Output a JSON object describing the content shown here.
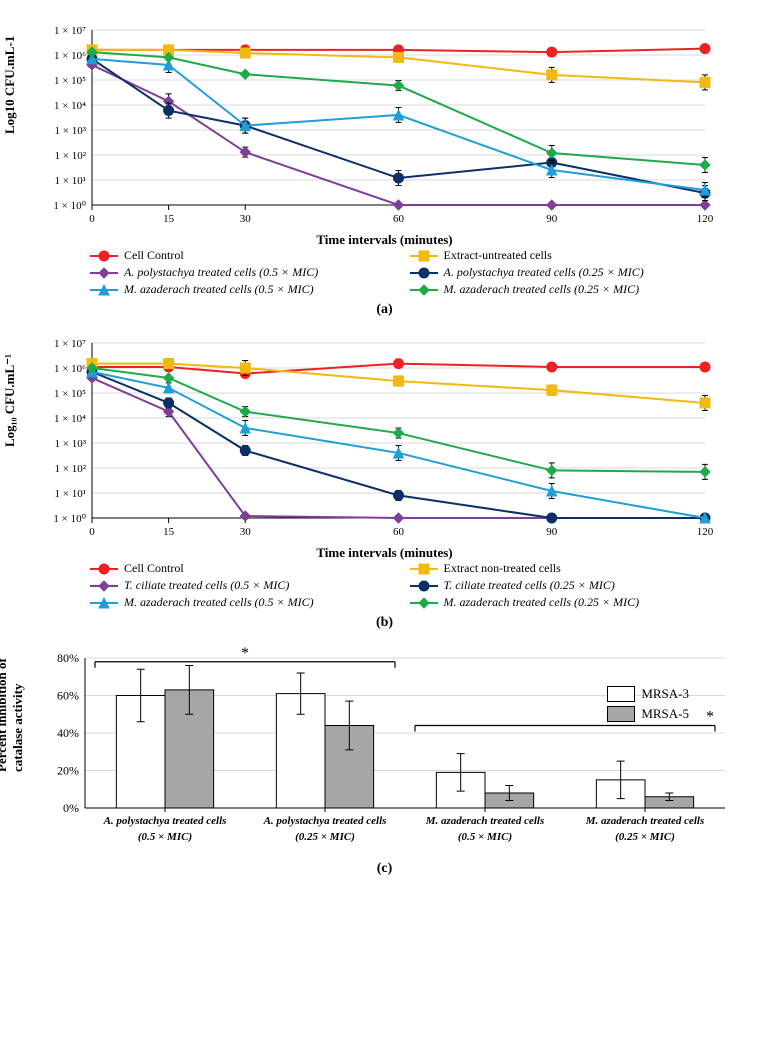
{
  "global": {
    "font": "Palatino Linotype",
    "background_color": "#ffffff"
  },
  "panelA": {
    "label": "(a)",
    "ylabel": "Log10 CFU.mL-1",
    "xlabel": "Time intervals (minutes)",
    "yscale": "log",
    "ylim": [
      1,
      10000000.0
    ],
    "ytick_labels": [
      "1 × 10⁰",
      "1 × 10¹",
      "1 × 10²",
      "1 × 10³",
      "1 × 10⁴",
      "1 × 10⁵",
      "1 × 10⁶",
      "1 × 10⁷"
    ],
    "x_values": [
      0,
      15,
      30,
      60,
      90,
      120
    ],
    "grid_color": "#d9d9d9",
    "tick_fontsize": 11,
    "series": [
      {
        "name": "Cell Control",
        "color": "#ed2024",
        "marker": "circle",
        "values": [
          1600000.0,
          1600000.0,
          1600000.0,
          1600000.0,
          1300000.0,
          1800000.0
        ],
        "err": [
          0,
          0,
          0,
          0,
          0,
          0
        ]
      },
      {
        "name": "Extract-untreated cells",
        "color": "#f2b90f",
        "marker": "square",
        "values": [
          1600000.0,
          1600000.0,
          1200000.0,
          800000.0,
          160000.0,
          80000.0
        ],
        "err": [
          0,
          0,
          0,
          0,
          0.3,
          0.3
        ]
      },
      {
        "name": "A. polystachya treated cells (0.5 × MIC)",
        "color": "#7d3f98",
        "marker": "diamond",
        "italic": true,
        "values": [
          400000.0,
          14000.0,
          130.0,
          1,
          1,
          1
        ],
        "err": [
          0,
          0.3,
          0.2,
          0,
          0,
          0
        ]
      },
      {
        "name": "A. polystachya treated cells (0.25 × MIC)",
        "color": "#0b2f66",
        "marker": "circle",
        "italic": true,
        "values": [
          700000.0,
          6000.0,
          1500.0,
          12.0,
          50.0,
          3
        ],
        "err": [
          0,
          0.3,
          0.3,
          0.3,
          0.3,
          0.3
        ]
      },
      {
        "name": "M. azaderach treated cells (0.5 × MIC)",
        "color": "#1f9ed9",
        "marker": "triangle",
        "italic": true,
        "values": [
          700000.0,
          400000.0,
          1500.0,
          4000.0,
          25.0,
          4
        ],
        "err": [
          0,
          0.3,
          0.3,
          0.3,
          0.3,
          0.3
        ]
      },
      {
        "name": "M. azaderach treated cells (0.25 × MIC)",
        "color": "#1faa4a",
        "marker": "diamond",
        "italic": true,
        "values": [
          1300000.0,
          800000.0,
          170000.0,
          60000.0,
          120.0,
          40.0
        ],
        "err": [
          0,
          0,
          0,
          0.2,
          0.3,
          0.3
        ]
      }
    ]
  },
  "panelB": {
    "label": "(b)",
    "ylabel": "Log₁₀ CFU.mL⁻¹",
    "xlabel": "Time intervals (minutes)",
    "yscale": "log",
    "ylim": [
      1,
      10000000.0
    ],
    "ytick_labels": [
      "1 × 10⁰",
      "1 × 10¹",
      "1 × 10²",
      "1 × 10³",
      "1 × 10⁴",
      "1 × 10⁵",
      "1 × 10⁶",
      "1 × 10⁷"
    ],
    "x_values": [
      0,
      15,
      30,
      60,
      90,
      120
    ],
    "grid_color": "#d9d9d9",
    "tick_fontsize": 11,
    "series": [
      {
        "name": "Cell Control",
        "color": "#ed2024",
        "marker": "circle",
        "values": [
          1100000.0,
          1100000.0,
          600000.0,
          1500000.0,
          1100000.0,
          1100000.0
        ],
        "err": [
          0,
          0,
          0,
          0,
          0,
          0
        ]
      },
      {
        "name": "Extract non-treated cells",
        "color": "#f2b90f",
        "marker": "square",
        "values": [
          1500000.0,
          1500000.0,
          1000000.0,
          300000.0,
          130000.0,
          40000.0
        ],
        "err": [
          0,
          0.2,
          0.3,
          0.2,
          0.2,
          0.3
        ]
      },
      {
        "name": "T. ciliate treated cells (0.5 × MIC)",
        "color": "#7d3f98",
        "marker": "diamond",
        "italic": true,
        "values": [
          400000.0,
          18000.0,
          1.2,
          1,
          1,
          1
        ],
        "err": [
          0,
          0.2,
          0,
          0,
          0,
          0
        ]
      },
      {
        "name": "T. ciliate treated cells (0.25 × MIC)",
        "color": "#0b2f66",
        "marker": "circle",
        "italic": true,
        "values": [
          700000.0,
          40000.0,
          500.0,
          8,
          1,
          1
        ],
        "err": [
          0,
          0.2,
          0.2,
          0.2,
          0,
          0
        ]
      },
      {
        "name": "M. azaderach treated cells (0.5 × MIC)",
        "color": "#1f9ed9",
        "marker": "triangle",
        "italic": true,
        "values": [
          700000.0,
          160000.0,
          4000.0,
          400.0,
          12.0,
          1
        ],
        "err": [
          0,
          0.2,
          0.3,
          0.3,
          0.3,
          0
        ]
      },
      {
        "name": "M. azaderach treated cells (0.25 × MIC)",
        "color": "#1faa4a",
        "marker": "diamond",
        "italic": true,
        "values": [
          1000000.0,
          400000.0,
          18000.0,
          2500.0,
          80.0,
          70.0
        ],
        "err": [
          0,
          0,
          0.2,
          0.2,
          0.3,
          0.3
        ]
      }
    ]
  },
  "panelC": {
    "label": "(c)",
    "ylabel": "Percent inhibition of\ncatalase activity",
    "ylim": [
      0,
      80
    ],
    "ytick_step": 20,
    "ytick_labels": [
      "0%",
      "20%",
      "40%",
      "60%",
      "80%"
    ],
    "categories": [
      {
        "line1": "A. polystachya treated cells",
        "line2": "(0.5 × MIC)"
      },
      {
        "line1": "A. polystachya treated cells",
        "line2": "(0.25 × MIC)"
      },
      {
        "line1": "M. azaderach treated cells",
        "line2": "(0.5 × MIC)"
      },
      {
        "line1": "M. azaderach treated cells",
        "line2": "(0.25 × MIC)"
      }
    ],
    "groups": [
      {
        "name": "MRSA-3",
        "color": "#ffffff",
        "border": "#000000",
        "values": [
          60,
          61,
          19,
          15
        ],
        "err": [
          14,
          11,
          10,
          10
        ]
      },
      {
        "name": "MRSA-5",
        "color": "#a6a6a6",
        "border": "#000000",
        "values": [
          63,
          44,
          8,
          6
        ],
        "err": [
          13,
          13,
          4,
          2
        ]
      }
    ],
    "grid_color": "#d9d9d9",
    "bar_width": 0.38,
    "significance_marks": [
      {
        "span": [
          0,
          1
        ],
        "y": 78,
        "label": "*"
      },
      {
        "span": [
          2,
          3
        ],
        "y": 44,
        "label": "*",
        "align": "right"
      }
    ]
  }
}
